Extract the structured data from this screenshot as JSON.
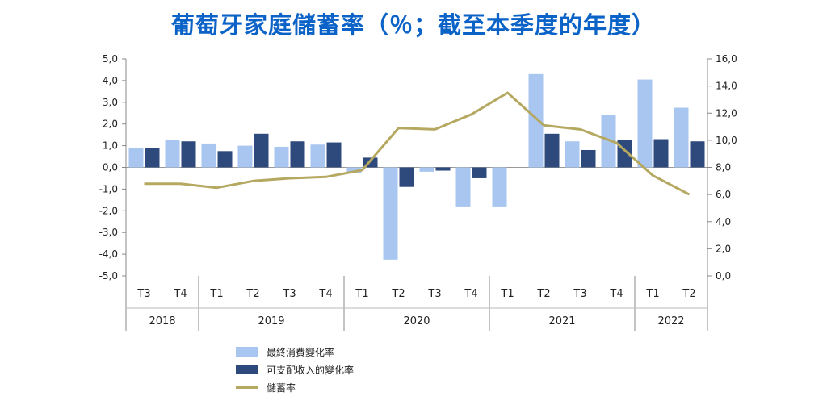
{
  "chart_data": {
    "type": "bar",
    "title": "葡萄牙家庭儲蓄率（％；截至本季度的年度）",
    "quarters": [
      "T3",
      "T4",
      "T1",
      "T2",
      "T3",
      "T4",
      "T1",
      "T2",
      "T3",
      "T4",
      "T1",
      "T2",
      "T3",
      "T4",
      "T1",
      "T2"
    ],
    "years": [
      {
        "label": "2018",
        "count": 2
      },
      {
        "label": "2019",
        "count": 4
      },
      {
        "label": "2020",
        "count": 4
      },
      {
        "label": "2021",
        "count": 4
      },
      {
        "label": "2022",
        "count": 2
      }
    ],
    "left_axis": {
      "min": -5,
      "max": 5,
      "step": 1,
      "ticks": [
        "5,0",
        "4,0",
        "3,0",
        "2,0",
        "1,0",
        "0,0",
        "-1,0",
        "-2,0",
        "-3,0",
        "-4,0",
        "-5,0"
      ]
    },
    "right_axis": {
      "min": 0,
      "max": 16,
      "step": 2,
      "ticks": [
        "16,0",
        "14,0",
        "12,0",
        "10,0",
        "8,0",
        "6,0",
        "4,0",
        "2,0",
        "0,0"
      ]
    },
    "series": [
      {
        "name": "最終消費變化率",
        "type": "bar",
        "axis": "left",
        "color": "#a9c6f0",
        "values": [
          0.9,
          1.25,
          1.1,
          1.0,
          0.95,
          1.05,
          -0.25,
          -4.25,
          -0.2,
          -1.8,
          -1.8,
          4.3,
          1.2,
          2.4,
          4.05,
          2.75
        ]
      },
      {
        "name": "可支配收入的變化率",
        "type": "bar",
        "axis": "left",
        "color": "#2e4a7d",
        "values": [
          0.9,
          1.2,
          0.75,
          1.55,
          1.2,
          1.15,
          0.45,
          -0.9,
          -0.15,
          -0.5,
          0.0,
          1.55,
          0.8,
          1.25,
          1.3,
          1.2
        ]
      },
      {
        "name": "儲蓄率",
        "type": "line",
        "axis": "right",
        "color": "#b5a860",
        "values": [
          6.8,
          6.8,
          6.5,
          7.0,
          7.2,
          7.3,
          7.8,
          10.9,
          10.8,
          11.9,
          13.5,
          11.1,
          10.8,
          9.8,
          7.4,
          6.0
        ]
      }
    ]
  }
}
